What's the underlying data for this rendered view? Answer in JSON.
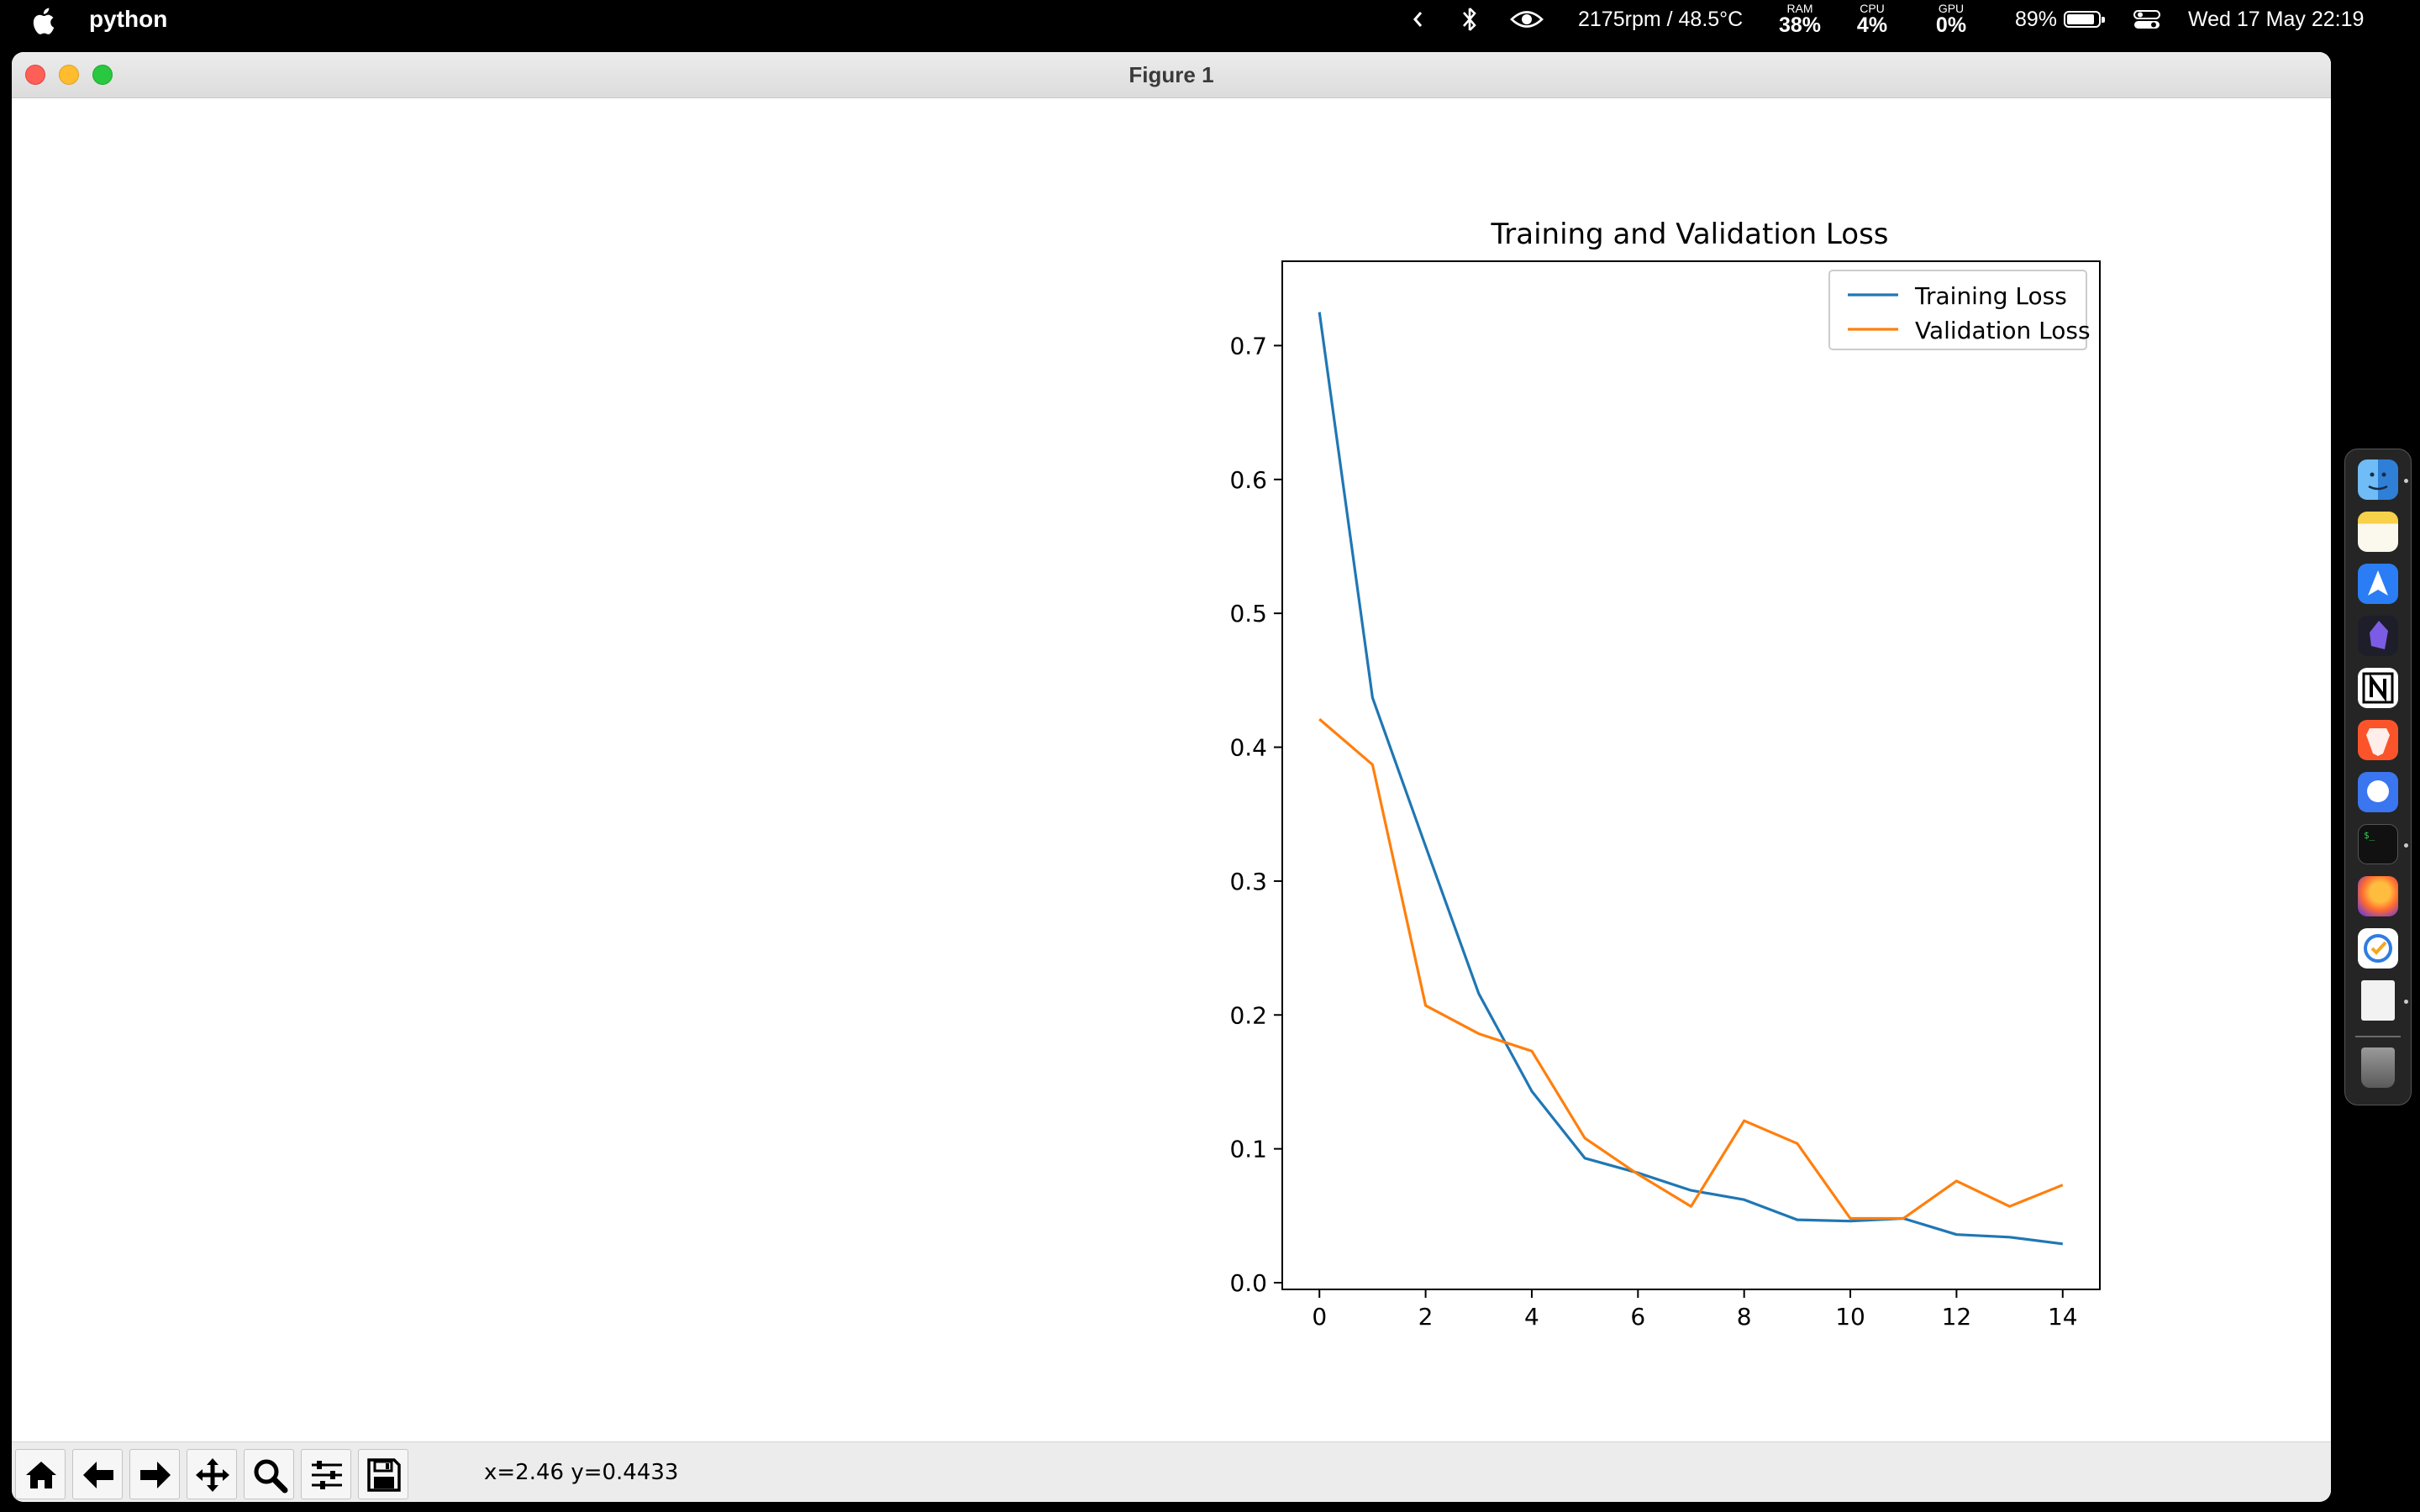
{
  "menubar": {
    "app_name": "python",
    "fan_temp": "2175rpm / 48.5°C",
    "ram_label": "RAM",
    "ram_value": "38%",
    "cpu_label": "CPU",
    "cpu_value": "4%",
    "gpu_label": "GPU",
    "gpu_value": "0%",
    "battery_percent": "89%",
    "battery_level": 0.89,
    "datetime": "Wed 17 May  22:19"
  },
  "window": {
    "title": "Figure 1"
  },
  "chart_data": {
    "type": "line",
    "title": "Training and Validation Loss",
    "x": [
      0,
      1,
      2,
      3,
      4,
      5,
      6,
      7,
      8,
      9,
      10,
      11,
      12,
      13,
      14
    ],
    "series": [
      {
        "name": "Training Loss",
        "color": "#1f77b4",
        "values": [
          0.725,
          0.437,
          0.326,
          0.216,
          0.143,
          0.093,
          0.082,
          0.069,
          0.062,
          0.047,
          0.046,
          0.048,
          0.036,
          0.034,
          0.029
        ]
      },
      {
        "name": "Validation Loss",
        "color": "#ff7f0e",
        "values": [
          0.421,
          0.387,
          0.207,
          0.186,
          0.173,
          0.108,
          0.081,
          0.057,
          0.121,
          0.104,
          0.048,
          0.048,
          0.076,
          0.057,
          0.073
        ]
      }
    ],
    "xlim": [
      -0.7,
      14.7
    ],
    "ylim": [
      -0.005,
      0.763
    ],
    "xticks": [
      "0",
      "2",
      "4",
      "6",
      "8",
      "10",
      "12",
      "14"
    ],
    "yticks": [
      "0.0",
      "0.1",
      "0.2",
      "0.3",
      "0.4",
      "0.5",
      "0.6",
      "0.7"
    ],
    "xlabel": "",
    "ylabel": "",
    "grid": false,
    "legend": "upper right"
  },
  "toolbar": {
    "tools": [
      "home-icon",
      "back-arrow-icon",
      "forward-arrow-icon",
      "pan-icon",
      "zoom-icon",
      "configure-subplots-icon",
      "save-icon"
    ],
    "coords": "x=2.46 y=0.4433"
  },
  "dock": {
    "apps": [
      "finder",
      "notes",
      "maps-navigation",
      "obsidian",
      "notion",
      "brave",
      "signal",
      "terminal",
      "firefox",
      "tasks",
      "document",
      "trash"
    ]
  }
}
